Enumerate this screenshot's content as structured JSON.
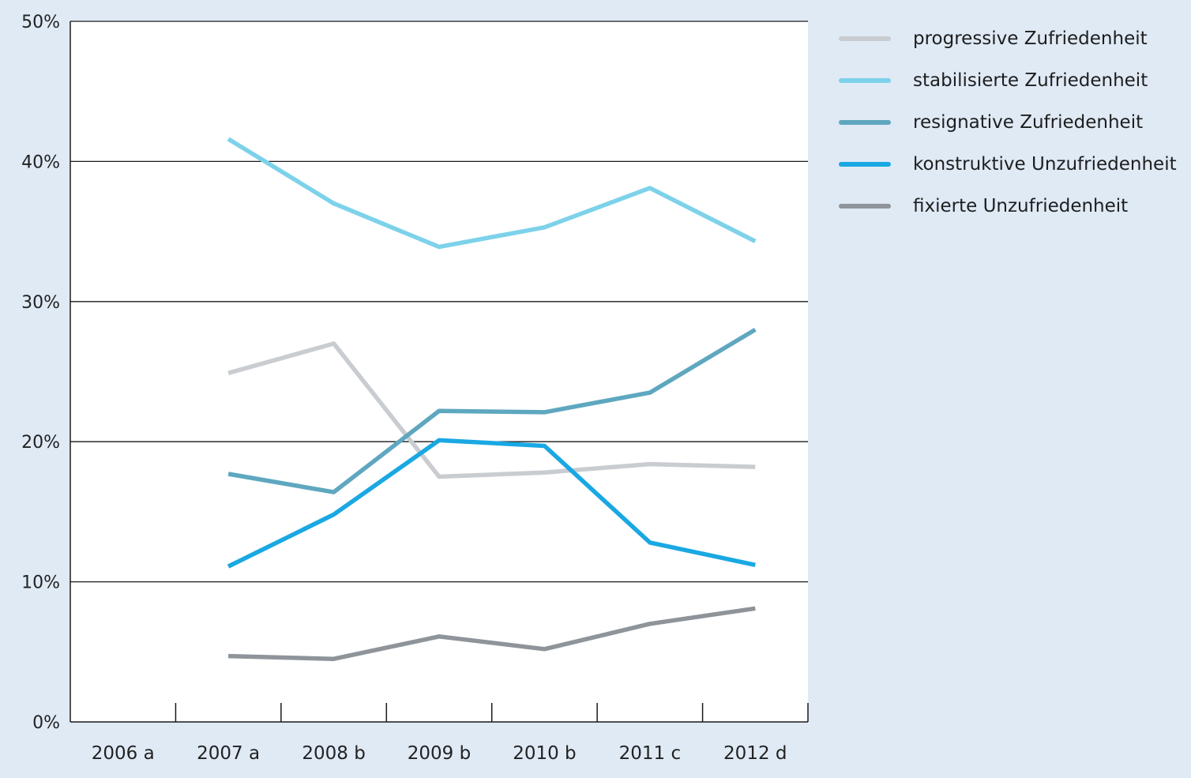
{
  "chart_data": {
    "type": "line",
    "categories": [
      "2006 a",
      "2007 a",
      "2008 b",
      "2009 b",
      "2010 b",
      "2011 c",
      "2012 d"
    ],
    "ylim": [
      0,
      50
    ],
    "y_ticks": [
      0,
      10,
      20,
      30,
      40,
      50
    ],
    "y_tick_labels": [
      "0%",
      "10%",
      "20%",
      "30%",
      "40%",
      "50%"
    ],
    "grid": "horizontal",
    "legend_position": "right",
    "series": [
      {
        "name": "progressive Zufriedenheit",
        "color": "#c9ccd0",
        "values": [
          null,
          24.9,
          27.0,
          17.5,
          17.8,
          18.4,
          18.2
        ]
      },
      {
        "name": "stabilisierte Zufriedenheit",
        "color": "#7dd2ea",
        "values": [
          null,
          41.6,
          37.0,
          33.9,
          35.3,
          38.1,
          34.3
        ]
      },
      {
        "name": "resignative Zufriedenheit",
        "color": "#5ea7bf",
        "values": [
          null,
          17.7,
          16.4,
          22.2,
          22.1,
          23.5,
          28.0
        ]
      },
      {
        "name": "konstruktive Unzufriedenheit",
        "color": "#1aa8e2",
        "values": [
          null,
          11.1,
          14.8,
          20.1,
          19.7,
          12.8,
          11.2
        ]
      },
      {
        "name": "fixierte Unzufriedenheit",
        "color": "#8e949a",
        "values": [
          null,
          4.7,
          4.5,
          6.1,
          5.2,
          7.0,
          8.1
        ]
      }
    ]
  }
}
